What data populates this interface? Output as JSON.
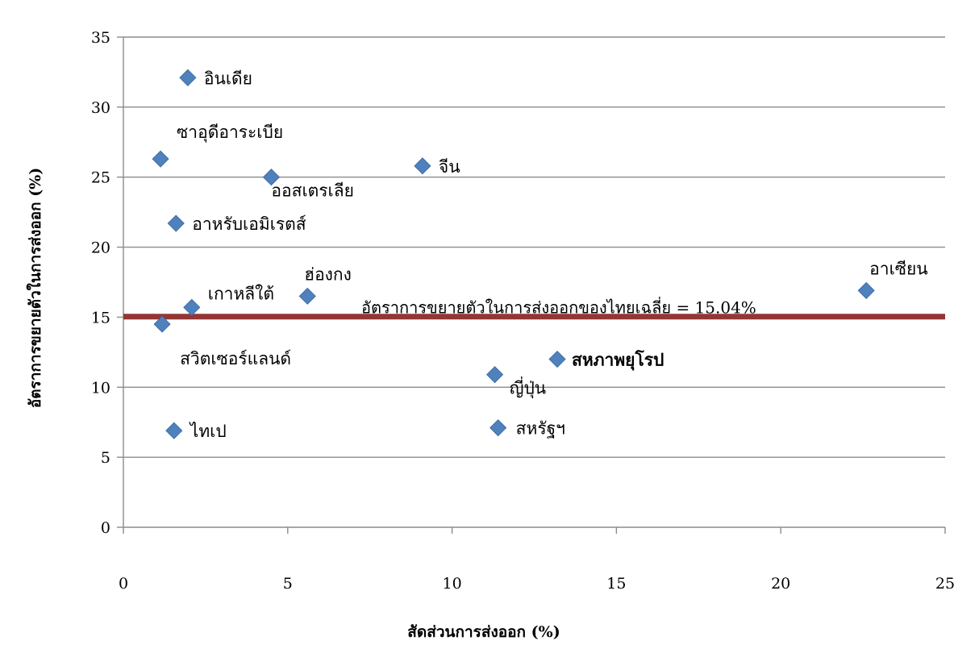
{
  "chart_data": {
    "type": "scatter",
    "title": "",
    "xlabel": "สัดส่วนการส่งออก (%)",
    "ylabel": "อัตราการขยายตัวในการส่งออก (%)",
    "xlim": [
      0,
      25
    ],
    "ylim": [
      0,
      35
    ],
    "x_ticks": [
      0,
      5,
      10,
      15,
      20,
      25
    ],
    "y_ticks": [
      0,
      5,
      10,
      15,
      20,
      25,
      30,
      35
    ],
    "grid": "horizontal",
    "marker": "diamond",
    "marker_color": "#4F81BD",
    "points": [
      {
        "label": "อินเดีย",
        "x": 1.96,
        "y": 32.1,
        "bold": false
      },
      {
        "label": "ซาอุดีอาระเบีย",
        "x": 1.13,
        "y": 26.3,
        "bold": false
      },
      {
        "label": "ออสเตรเลีย",
        "x": 4.5,
        "y": 25.0,
        "bold": false
      },
      {
        "label": "จีน",
        "x": 9.1,
        "y": 25.8,
        "bold": false
      },
      {
        "label": "อาหรับเอมิเรตส์",
        "x": 1.6,
        "y": 21.7,
        "bold": false
      },
      {
        "label": "เกาหลีใต้",
        "x": 2.08,
        "y": 15.7,
        "bold": false
      },
      {
        "label": "ฮ่องกง",
        "x": 5.6,
        "y": 16.5,
        "bold": false
      },
      {
        "label": "สวิตเซอร์แลนด์",
        "x": 1.18,
        "y": 14.5,
        "bold": false
      },
      {
        "label": "อาเซียน",
        "x": 22.6,
        "y": 16.9,
        "bold": false
      },
      {
        "label": "ญี่ปุ่น",
        "x": 11.3,
        "y": 10.9,
        "bold": false
      },
      {
        "label": "สหภาพยุโรป",
        "x": 13.2,
        "y": 12.0,
        "bold": true
      },
      {
        "label": "ไทเป",
        "x": 1.54,
        "y": 6.9,
        "bold": false
      },
      {
        "label": "สหรัฐฯ",
        "x": 11.4,
        "y": 7.1,
        "bold": false
      }
    ],
    "reference_line": {
      "y": 15.04,
      "label": "อัตราการขยายตัวในการส่งออกของไทยเฉลี่ย = 15.04%",
      "color": "#943634"
    }
  }
}
